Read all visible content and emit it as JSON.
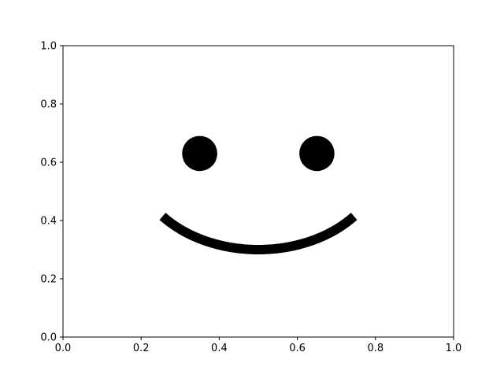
{
  "chart_data": {
    "type": "scatter",
    "title": "",
    "xlabel": "",
    "ylabel": "",
    "xlim": [
      0.0,
      1.0
    ],
    "ylim": [
      0.0,
      1.0
    ],
    "grid": false,
    "x_ticks": [
      "0.0",
      "0.2",
      "0.4",
      "0.6",
      "0.8",
      "1.0"
    ],
    "y_ticks": [
      "0.0",
      "0.2",
      "0.4",
      "0.6",
      "0.8",
      "1.0"
    ],
    "shapes": {
      "eyes": [
        {
          "name": "left-eye",
          "x": 0.35,
          "y": 0.63,
          "radius": 0.045
        },
        {
          "name": "right-eye",
          "x": 0.65,
          "y": 0.63,
          "radius": 0.045
        }
      ],
      "mouth": {
        "name": "mouth-arc",
        "center": [
          0.5,
          0.62
        ],
        "radius": 0.32,
        "angle_start_deg": 220,
        "angle_end_deg": 320
      }
    },
    "colors": {
      "shape": "#000000",
      "axes": "#000000",
      "background": "#ffffff"
    }
  }
}
